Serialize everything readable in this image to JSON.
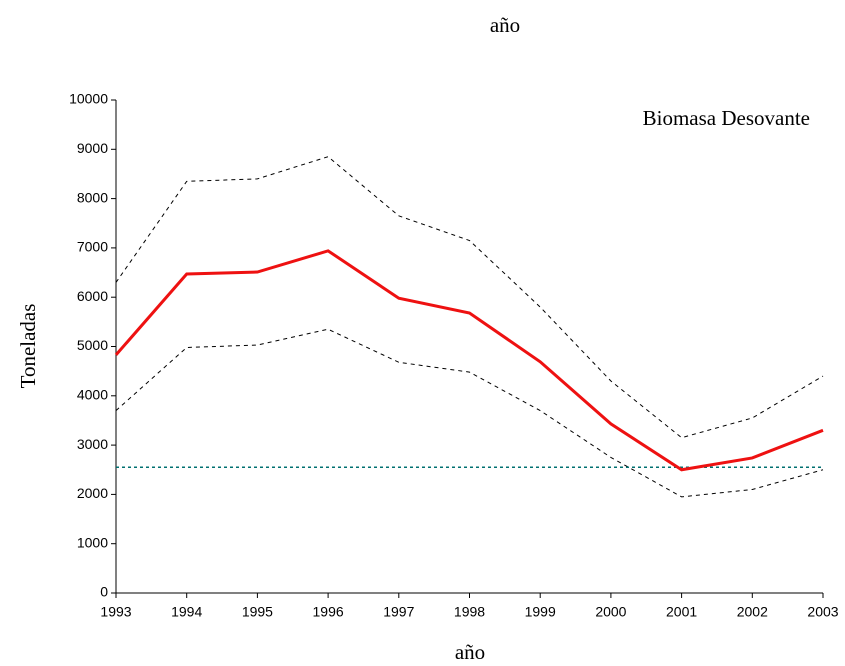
{
  "chart_data": {
    "type": "line",
    "title": "año",
    "x_label": "año",
    "y_label": "Toneladas",
    "annotation": "Biomasa Desovante",
    "x": [
      1993,
      1994,
      1995,
      1996,
      1997,
      1998,
      1999,
      2000,
      2001,
      2002,
      2003
    ],
    "xlim": [
      1993,
      2003
    ],
    "xticks": [
      1993,
      1994,
      1995,
      1996,
      1997,
      1998,
      1999,
      2000,
      2001,
      2002,
      2003
    ],
    "ylim": [
      0,
      10000
    ],
    "yticks": [
      0,
      1000,
      2000,
      3000,
      4000,
      5000,
      6000,
      7000,
      8000,
      9000,
      10000
    ],
    "series": [
      {
        "color": "#000000",
        "dash": "4,4",
        "width": 1,
        "values": [
          6300,
          8350,
          8400,
          8850,
          7650,
          7150,
          5800,
          4300,
          3150,
          3550,
          4400
        ]
      },
      {
        "color": "#000000",
        "dash": "4,4",
        "width": 1,
        "values": [
          3700,
          4980,
          5030,
          5350,
          4680,
          4480,
          3700,
          2750,
          1950,
          2100,
          2500
        ]
      },
      {
        "color": "#007070",
        "dash": "3,3",
        "width": 1.5,
        "values": [
          2550,
          2550,
          2550,
          2550,
          2550,
          2550,
          2550,
          2550,
          2550,
          2550,
          2550
        ]
      },
      {
        "color": "#ee1111",
        "dash": "none",
        "width": 3,
        "values": [
          4830,
          6470,
          6510,
          6940,
          5980,
          5680,
          4690,
          3430,
          2500,
          2740,
          3300
        ]
      }
    ]
  }
}
